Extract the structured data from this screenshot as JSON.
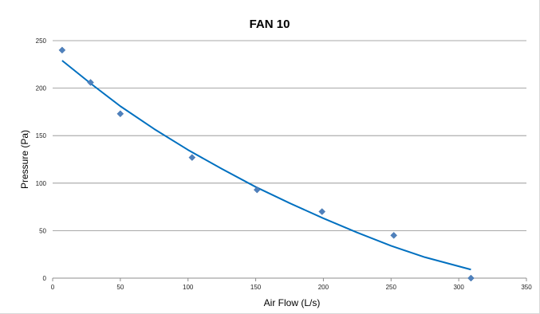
{
  "chart_data": {
    "type": "scatter",
    "title": "FAN 10",
    "xlabel": "Air Flow (L/s)",
    "ylabel": "Pressure (Pa)",
    "xlim": [
      0,
      350
    ],
    "ylim": [
      0,
      250
    ],
    "x_ticks": [
      0,
      50,
      100,
      150,
      200,
      250,
      300,
      350
    ],
    "y_ticks": [
      0,
      50,
      100,
      150,
      200,
      250
    ],
    "grid": "horizontal",
    "legend": "none",
    "series": [
      {
        "marker": "diamond",
        "color": "#4f81bd",
        "points": [
          {
            "x": 7,
            "y": 240
          },
          {
            "x": 28,
            "y": 206
          },
          {
            "x": 50,
            "y": 173
          },
          {
            "x": 103,
            "y": 127
          },
          {
            "x": 151,
            "y": 93
          },
          {
            "x": 199,
            "y": 70
          },
          {
            "x": 252,
            "y": 45
          },
          {
            "x": 309,
            "y": 0
          }
        ]
      }
    ],
    "trendline": {
      "type": "polynomial",
      "color": "#0070c0",
      "points": [
        {
          "x": 7,
          "y": 229
        },
        {
          "x": 28,
          "y": 205
        },
        {
          "x": 50,
          "y": 181
        },
        {
          "x": 75,
          "y": 157
        },
        {
          "x": 100,
          "y": 135
        },
        {
          "x": 125,
          "y": 115
        },
        {
          "x": 150,
          "y": 96
        },
        {
          "x": 175,
          "y": 79
        },
        {
          "x": 200,
          "y": 63
        },
        {
          "x": 225,
          "y": 48
        },
        {
          "x": 250,
          "y": 34
        },
        {
          "x": 275,
          "y": 22
        },
        {
          "x": 309,
          "y": 9
        }
      ]
    }
  }
}
